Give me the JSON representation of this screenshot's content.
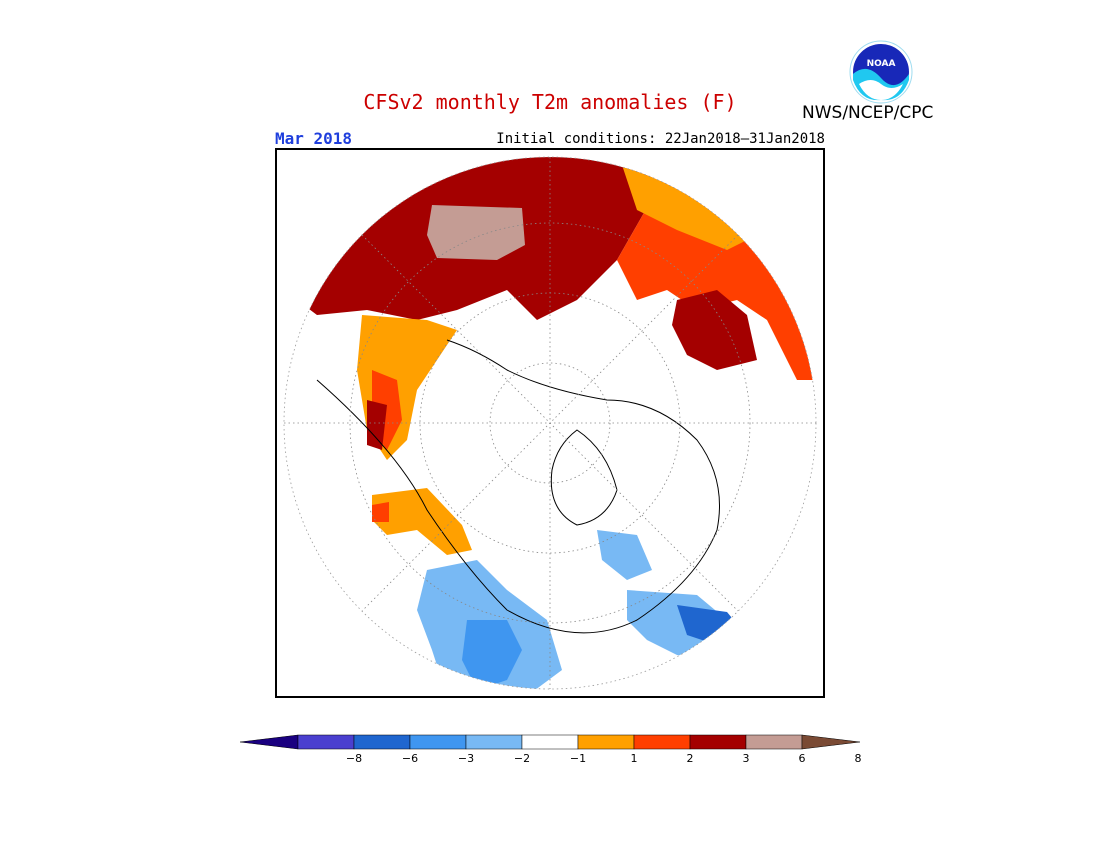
{
  "title": "CFSv2 monthly T2m anomalies (F)",
  "valid_month": "Mar 2018",
  "initial_conditions": "Initial conditions: 22Jan2018–31Jan2018",
  "agency": "NWS/NCEP/CPC",
  "logo": {
    "icon": "noaa-logo",
    "text": "NOAA"
  },
  "colors": {
    "title": "#cc0000",
    "month": "#1f3fdd"
  },
  "colorbar": {
    "labels": [
      "−8",
      "−6",
      "−3",
      "−2",
      "−1",
      "1",
      "2",
      "3",
      "6",
      "8"
    ],
    "colors": [
      "#1a0080",
      "#4a3fcf",
      "#1f66cf",
      "#3f96f0",
      "#78b9f4",
      "#ffffff",
      "#ffa000",
      "#ff3f00",
      "#a40000",
      "#c49c94",
      "#7a4a34"
    ]
  }
}
